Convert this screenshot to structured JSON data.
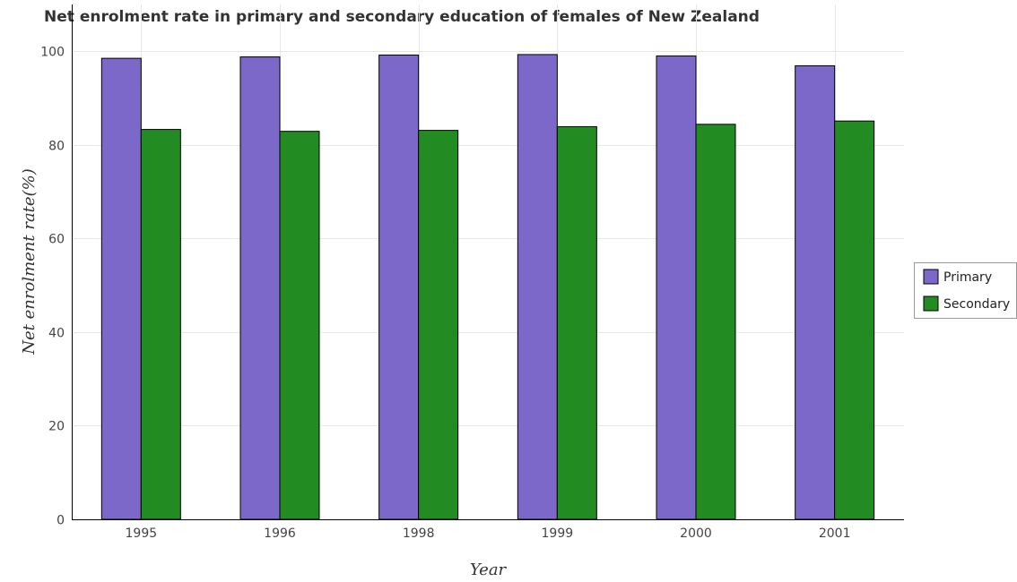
{
  "chart_data": {
    "type": "bar",
    "title": "Net enrolment rate in primary and secondary education of females of New Zealand",
    "xlabel": "Year",
    "ylabel": "Net enrolment rate(%)",
    "categories": [
      "1995",
      "1996",
      "1998",
      "1999",
      "2000",
      "2001"
    ],
    "series": [
      {
        "name": "Primary",
        "color": "#7b68c8",
        "values": [
          98.5,
          98.8,
          99.2,
          99.3,
          99.0,
          96.9
        ]
      },
      {
        "name": "Secondary",
        "color": "#228b22",
        "values": [
          83.3,
          82.9,
          83.1,
          83.9,
          84.4,
          85.1
        ]
      }
    ],
    "ylim": [
      0,
      110
    ],
    "yticks": [
      0,
      20,
      40,
      60,
      80,
      100
    ],
    "grid": true,
    "legend_position": "right"
  }
}
